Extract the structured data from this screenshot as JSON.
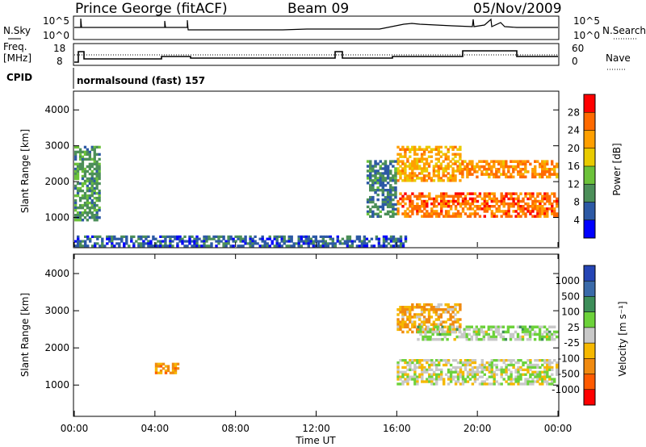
{
  "header": {
    "station": "Prince George (fitACF)",
    "beam": "Beam 09",
    "date": "05/Nov/2009"
  },
  "noise_panel": {
    "left_label": "N.Sky",
    "left_ticks": [
      "10^5",
      "10^0"
    ],
    "right_ticks": [
      "10^5",
      "10^0"
    ],
    "right_label": "N.Search"
  },
  "freq_panel": {
    "left_label_line1": "Freq.",
    "left_label_line2": "[MHz]",
    "left_ticks": [
      "18",
      "8"
    ],
    "right_ticks": [
      "60",
      "0"
    ],
    "right_label": "Nave"
  },
  "cpid": {
    "label": "CPID",
    "value": "normalsound (fast) 157"
  },
  "power_panel": {
    "ylabel": "Slant Range [km]",
    "yticks": [
      "4000",
      "3000",
      "2000",
      "1000"
    ],
    "colorbar_label": "Power [dB]",
    "colorbar_ticks": [
      "28",
      "24",
      "20",
      "16",
      "12",
      "8",
      "4"
    ],
    "colorbar_colors": [
      "#ff0000",
      "#ff6a00",
      "#ff9f00",
      "#e9cb00",
      "#6cc23a",
      "#4c8f59",
      "#2d59a5",
      "#0000ff"
    ]
  },
  "velocity_panel": {
    "ylabel": "Slant Range [km]",
    "yticks": [
      "4000",
      "3000",
      "2000",
      "1000"
    ],
    "colorbar_label": "Velocity [m s⁻¹]",
    "colorbar_ticks": [
      "1000",
      "500",
      "100",
      "25",
      "-25",
      "-100",
      "-500",
      "-1000"
    ],
    "colorbar_colors": [
      "#2545b5",
      "#3a6aa9",
      "#3d8e59",
      "#6cd23a",
      "#c8c8c8",
      "#f6b800",
      "#f08a10",
      "#ff5a00",
      "#ff0000"
    ]
  },
  "x_axis": {
    "ticks": [
      "00:00",
      "04:00",
      "08:00",
      "12:00",
      "16:00",
      "20:00",
      "00:00"
    ],
    "label": "Time UT"
  },
  "chart_data": {
    "type": "heatmap",
    "title": "Prince George (fitACF)",
    "x_range_hours": [
      0,
      24
    ],
    "y_range_km": [
      180,
      4500
    ],
    "xlabel": "Time UT",
    "ylabel": "Slant Range [km]",
    "power_scale_db": [
      0,
      30
    ],
    "velocity_scale_ms": [
      -1000,
      1000
    ],
    "power_regions": [
      {
        "t": [
          16.0,
          19.2
        ],
        "r": [
          2000,
          3000
        ],
        "value": 20
      },
      {
        "t": [
          19.2,
          24.0
        ],
        "r": [
          2100,
          2600
        ],
        "value": 22
      },
      {
        "t": [
          16.0,
          24.0
        ],
        "r": [
          1000,
          1700
        ],
        "value": 24
      },
      {
        "t": [
          14.5,
          16.0
        ],
        "r": [
          1000,
          2600
        ],
        "value": 8
      },
      {
        "t": [
          0.0,
          16.5
        ],
        "r": [
          180,
          500
        ],
        "value": 6
      },
      {
        "t": [
          0.0,
          1.3
        ],
        "r": [
          900,
          3000
        ],
        "value": 10
      }
    ],
    "velocity_regions": [
      {
        "t": [
          16.0,
          19.2
        ],
        "r": [
          2400,
          3200
        ],
        "value": -300
      },
      {
        "t": [
          17.0,
          24.0
        ],
        "r": [
          2200,
          2600
        ],
        "value": 120
      },
      {
        "t": [
          16.0,
          24.0
        ],
        "r": [
          1000,
          1700
        ],
        "value": 0
      },
      {
        "t": [
          4.0,
          5.2
        ],
        "r": [
          1300,
          1600
        ],
        "value": -400
      }
    ]
  }
}
